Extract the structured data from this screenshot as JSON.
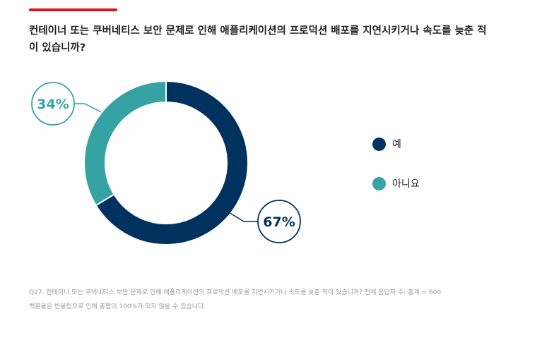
{
  "header": {
    "accent_color": "#d7141a",
    "question": "컨테이너 또는 쿠버네티스 보안 문제로 인해 애플리케이션의 프로덕션 배포를 지연시키거나 속도를 늦춘 적이 있습니까?"
  },
  "chart_data": {
    "type": "pie",
    "style": "donut",
    "categories": [
      "예",
      "아니요"
    ],
    "values": [
      67,
      34
    ],
    "unit": "%",
    "colors": [
      "#00325f",
      "#35a3a3"
    ],
    "data_labels": [
      "67%",
      "34%"
    ],
    "legend_position": "right"
  },
  "legend": {
    "items": [
      {
        "label": "예",
        "color": "#00325f"
      },
      {
        "label": "아니요",
        "color": "#35a3a3"
      }
    ]
  },
  "footnote": {
    "line1": "Q27. 컨테이너 또는 쿠버네티스 보안 문제로 인해 애플리케이션의 프로덕션 배포를 지연시키거나 속도를 늦춘 적이 있습니까? 전체 응답자 수: 총계 = 600",
    "line2": "백분율은 반올림으로 인해 총합이 100%가 되지 않을 수 있습니다."
  }
}
